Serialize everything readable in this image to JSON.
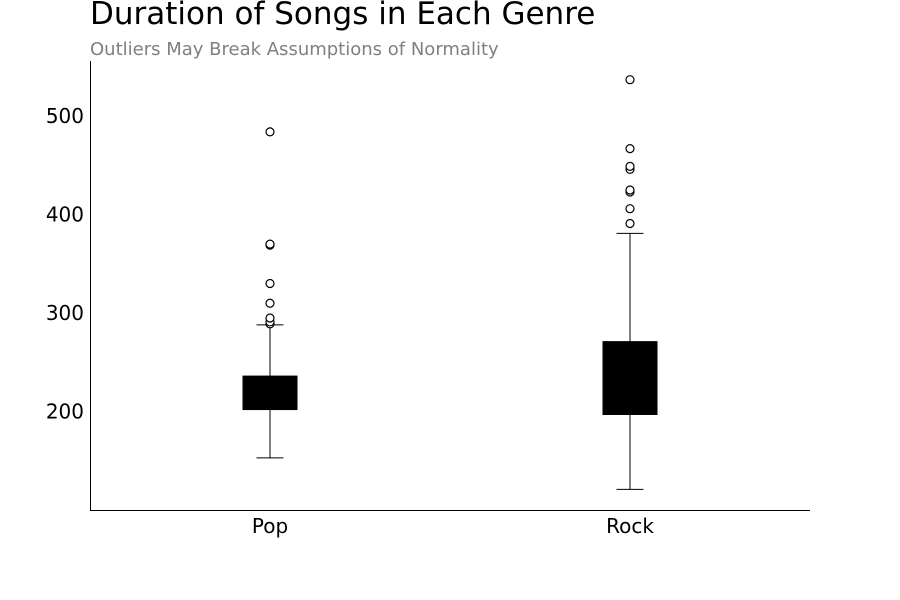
{
  "chart_data": {
    "type": "boxplot",
    "title": "Duration of Songs in Each Genre",
    "subtitle": "Outliers May Break Assumptions of Normality",
    "xlabel": "",
    "ylabel": "",
    "categories": [
      "Pop",
      "Rock"
    ],
    "ylim": [
      100,
      556
    ],
    "yticks": [
      200,
      300,
      400,
      500
    ],
    "grid": false,
    "colors": {
      "box": "#000000",
      "line": "#000000",
      "outlier_edge": "#000000",
      "outlier_fill": "#ffffff"
    },
    "boxes": [
      {
        "category": "Pop",
        "whisker_low": 153,
        "q1": 202,
        "median": 219,
        "q3": 236,
        "whisker_high": 288,
        "outliers": [
          289,
          291,
          295,
          310,
          330,
          369,
          370,
          484
        ]
      },
      {
        "category": "Rock",
        "whisker_low": 121,
        "q1": 197,
        "median": 234,
        "q3": 271,
        "whisker_high": 381,
        "outliers": [
          391,
          406,
          423,
          425,
          446,
          449,
          467,
          537
        ]
      }
    ]
  }
}
